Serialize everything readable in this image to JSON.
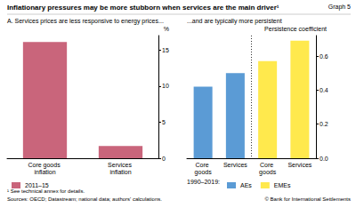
{
  "header": {
    "title": "Inflationary pressures may be more stubborn when services are the main driver¹",
    "graph_label": "Graph 5"
  },
  "chart_data": [
    {
      "type": "bar",
      "title": "A. Services prices are less responsive to energy prices...",
      "ylabel": "%",
      "categories": [
        "Core goods inflation",
        "Services inflation"
      ],
      "series": [
        {
          "name": "2011–15",
          "color": "#c9657b",
          "values": [
            16.1,
            1.7
          ]
        }
      ],
      "ylim": [
        0,
        17
      ],
      "yticks": [
        0,
        5,
        10,
        15
      ],
      "grid": false,
      "legend": "bottom left"
    },
    {
      "type": "bar",
      "title": "...and are typically more persistent",
      "ylabel": "Persistence coefficient",
      "legend_title": "1990–2019:",
      "categories": [
        "Core goods",
        "Services",
        "Core goods",
        "Services"
      ],
      "series": [
        {
          "name": "AEs",
          "color": "#5b9bd5",
          "values": [
            0.42,
            0.5,
            null,
            null
          ]
        },
        {
          "name": "EMEs",
          "color": "#ffe94d",
          "values": [
            null,
            null,
            0.57,
            0.69
          ]
        }
      ],
      "ylim": [
        0,
        0.72
      ],
      "yticks": [
        {
          "value": 0,
          "label": "0.0"
        },
        {
          "value": 0.2,
          "label": "0.2"
        },
        {
          "value": 0.4,
          "label": "0.4"
        },
        {
          "value": 0.6,
          "label": "0.6"
        }
      ],
      "grid": false,
      "legend": "bottom left"
    }
  ],
  "footer": {
    "note": "¹ See technical annex for details.",
    "sources": "Sources: OECD; Datastream; national data; authors' calculations.",
    "copyright": "© Bank for International Settlements"
  }
}
